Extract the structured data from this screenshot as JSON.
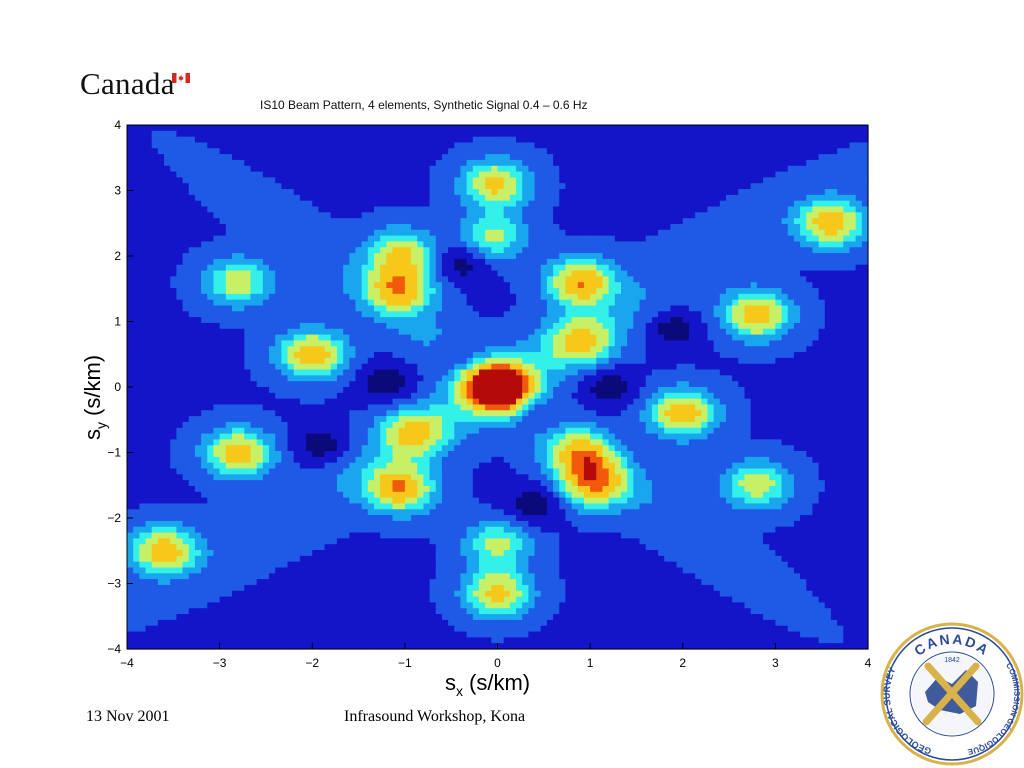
{
  "header": {
    "wordmark": "Canada"
  },
  "colors": {
    "flag_red": "#d52b1e",
    "seal_blue": "#2a4a9a",
    "seal_gold": "#d8b24a"
  },
  "footer": {
    "date": "13 Nov 2001",
    "event": "Infrasound Workshop, Kona"
  },
  "seal": {
    "top_text": "CANADA",
    "year": "1842",
    "left_text": "GEOLOGICAL SURVEY",
    "right_text": "COMMISSION GÉOLOGIQUE"
  },
  "chart_data": {
    "type": "heatmap",
    "title": "IS10 Beam Pattern, 4 elements, Synthetic Signal 0.4 – 0.6 Hz",
    "xlabel_main": "s",
    "xlabel_sub": "x",
    "xlabel_unit": "(s/km)",
    "ylabel_main": "s",
    "ylabel_sub": "y",
    "ylabel_unit": "(s/km)",
    "xlim": [
      -4,
      4
    ],
    "ylim": [
      -4,
      4
    ],
    "xticks": [
      -4,
      -3,
      -2,
      -1,
      0,
      1,
      2,
      3,
      4
    ],
    "yticks": [
      -4,
      -3,
      -2,
      -1,
      0,
      1,
      2,
      3,
      4
    ],
    "colormap": [
      "#0a0a7a",
      "#1414c8",
      "#1e5ae6",
      "#1aa6ef",
      "#33f0e8",
      "#c8f066",
      "#f6c81a",
      "#f05a0a",
      "#b40a0a"
    ],
    "peaks": [
      {
        "x": 0.0,
        "y": 0.0,
        "amp": 1.0
      },
      {
        "x": -0.02,
        "y": 3.1,
        "amp": 0.55
      },
      {
        "x": 0.0,
        "y": -3.15,
        "amp": 0.55
      },
      {
        "x": -1.05,
        "y": 1.5,
        "amp": 0.58
      },
      {
        "x": 1.05,
        "y": -1.5,
        "amp": 0.58
      },
      {
        "x": 0.9,
        "y": 1.6,
        "amp": 0.65
      },
      {
        "x": -1.05,
        "y": -1.55,
        "amp": 0.65
      },
      {
        "x": -2.0,
        "y": 0.5,
        "amp": 0.62
      },
      {
        "x": 2.0,
        "y": -0.4,
        "amp": 0.62
      },
      {
        "x": 2.8,
        "y": 1.1,
        "amp": 0.6
      },
      {
        "x": -2.8,
        "y": -1.0,
        "amp": 0.6
      },
      {
        "x": 3.6,
        "y": 2.5,
        "amp": 0.6
      },
      {
        "x": -3.6,
        "y": -2.5,
        "amp": 0.6
      },
      {
        "x": 0.9,
        "y": 0.7,
        "amp": 0.45
      },
      {
        "x": -0.9,
        "y": -0.7,
        "amp": 0.45
      },
      {
        "x": -2.8,
        "y": 1.6,
        "amp": 0.45
      },
      {
        "x": 2.8,
        "y": -1.5,
        "amp": 0.45
      },
      {
        "x": -1.05,
        "y": 2.05,
        "amp": 0.5
      },
      {
        "x": 0.9,
        "y": -1.05,
        "amp": 0.5
      },
      {
        "x": -0.05,
        "y": 2.3,
        "amp": 0.4
      },
      {
        "x": 0.0,
        "y": -2.4,
        "amp": 0.4
      }
    ],
    "troughs": [
      {
        "x": -0.4,
        "y": 0.45
      },
      {
        "x": 0.45,
        "y": -0.4
      },
      {
        "x": -1.2,
        "y": 0.05
      },
      {
        "x": 1.2,
        "y": 0.0
      },
      {
        "x": -0.4,
        "y": 1.9
      },
      {
        "x": 0.4,
        "y": -1.8
      },
      {
        "x": -1.9,
        "y": -0.9
      },
      {
        "x": 1.9,
        "y": 0.9
      }
    ]
  }
}
